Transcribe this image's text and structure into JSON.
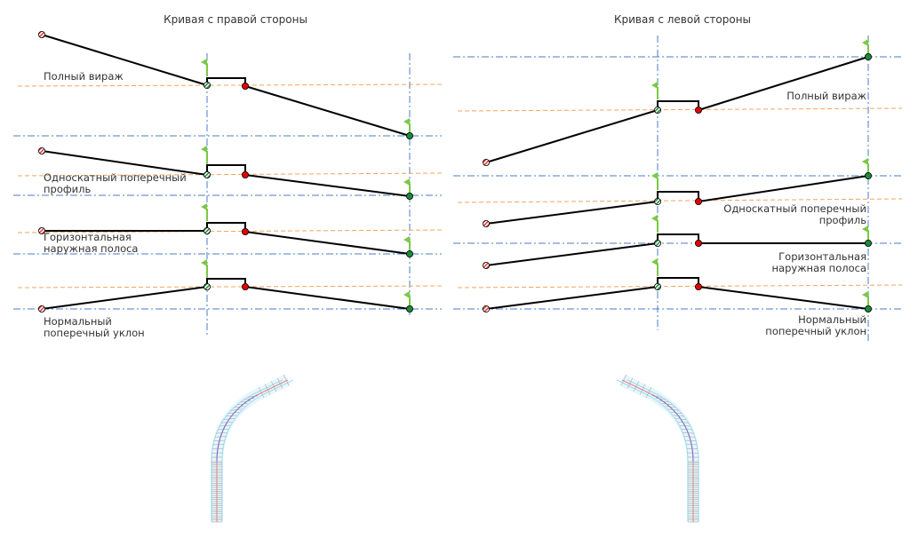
{
  "panels": [
    {
      "title": "Кривая с правой стороны",
      "labels": [
        [
          "Полный вираж"
        ],
        [
          "Односкатный поперечный",
          "профиль"
        ],
        [
          "Горизонтальная",
          "наружная полоса"
        ],
        [
          "Нормальный",
          "поперечный уклон"
        ]
      ]
    },
    {
      "title": "Кривая с левой стороны",
      "labels": [
        [
          "Полный вираж"
        ],
        [
          "Односкатный поперечный",
          "профиль"
        ],
        [
          "Горизонтальная",
          "наружная полоса"
        ],
        [
          "Нормальный",
          "поперечный уклон"
        ]
      ]
    }
  ],
  "colors": {
    "profile_line": "#000000",
    "centerline": "#4a7cc4",
    "reference_dashed": "#f4a460",
    "start_marker": "#e53935",
    "pivot_marker": "#1b8a3a",
    "edge_marker": "#e00000",
    "end_marker": "#16a34a",
    "flag": "#7ac943",
    "plan_edge": "#9fdcf0",
    "plan_center": "#f08080",
    "plan_curve": "#6a6ae0"
  }
}
